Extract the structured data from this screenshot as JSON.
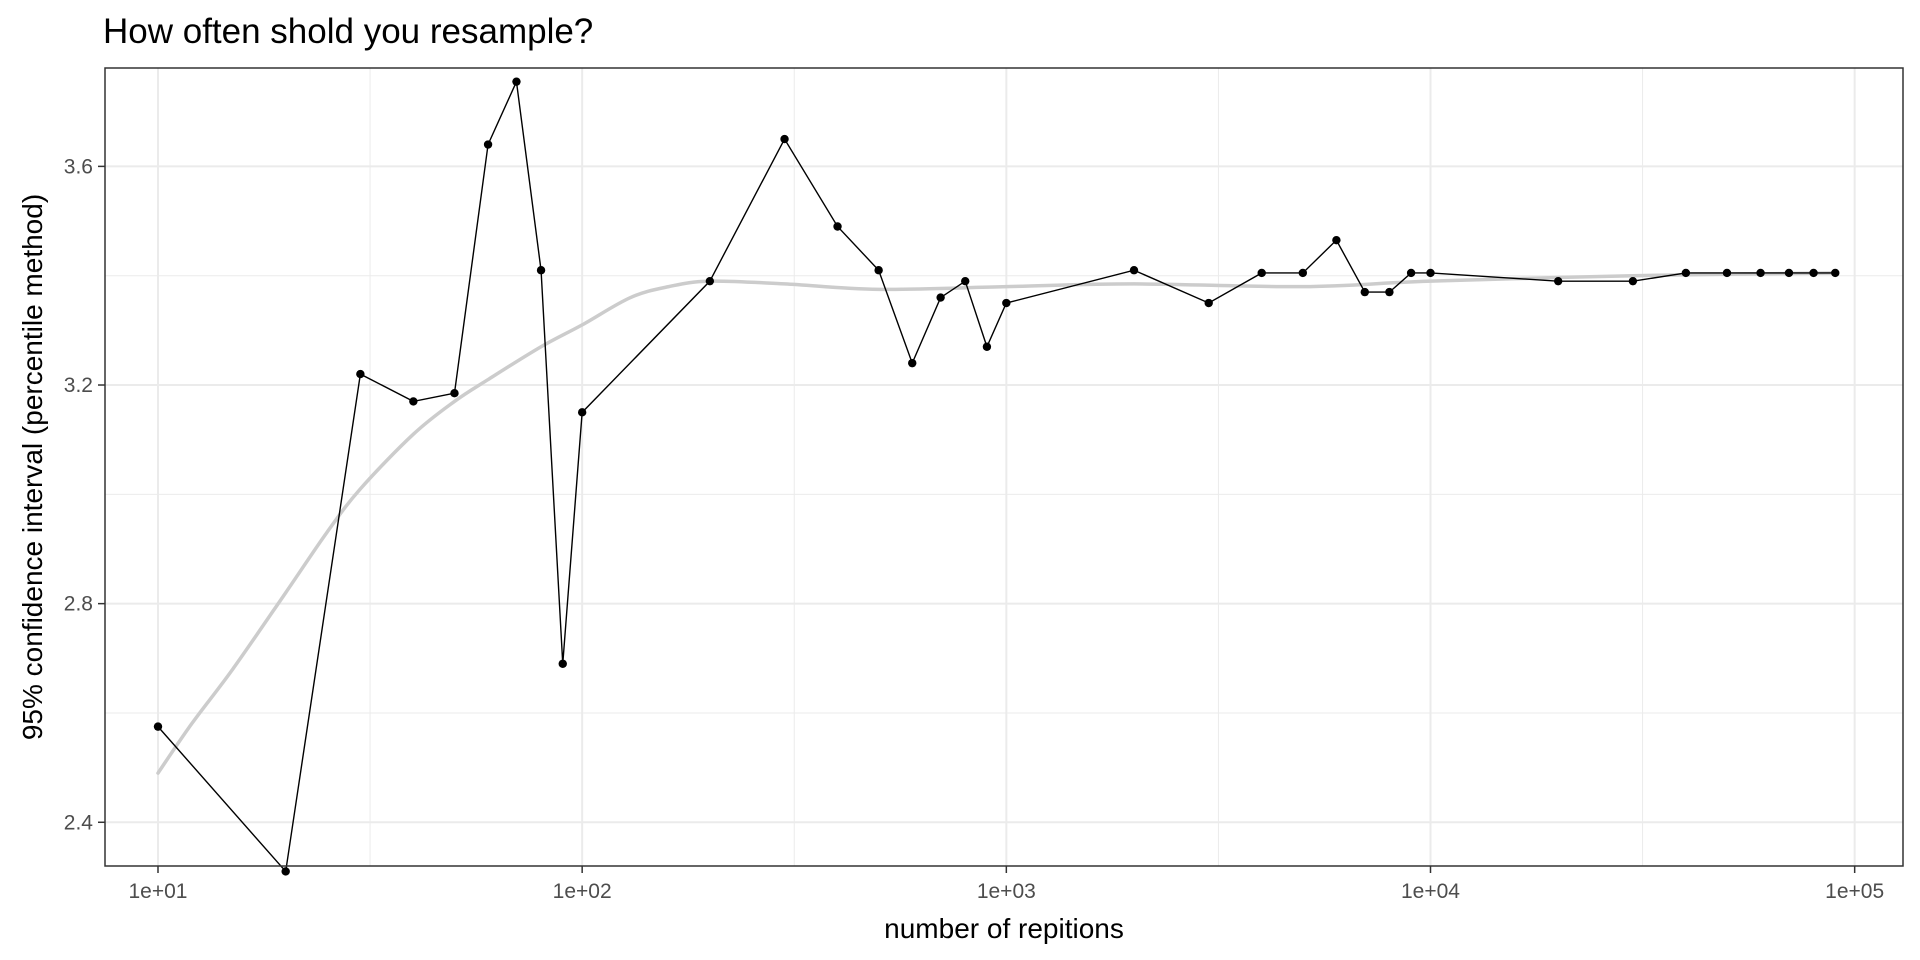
{
  "chart_data": {
    "type": "line",
    "title": "How often shold you resample?",
    "xlabel": "number of repitions",
    "ylabel": "95% confidence interval (percentile method)",
    "x_scale": "log10",
    "xlim": [
      7.5,
      130000
    ],
    "ylim": [
      2.32,
      3.78
    ],
    "x_ticks": [
      10,
      100,
      1000,
      10000,
      100000
    ],
    "x_tick_labels": [
      "1e+01",
      "1e+02",
      "1e+03",
      "1e+04",
      "1e+05"
    ],
    "y_ticks": [
      2.4,
      2.8,
      3.2,
      3.6
    ],
    "y_tick_labels": [
      "2.4",
      "2.8",
      "3.2",
      "3.6"
    ],
    "grid": true,
    "colors": {
      "line": "#000000",
      "point": "#000000",
      "smooth": "#cccccc",
      "grid": "#ebebeb",
      "border": "#333333"
    },
    "series": [
      {
        "x": [
          10,
          20,
          30,
          40,
          50,
          60,
          70,
          80,
          90,
          100,
          200,
          300,
          400,
          500,
          600,
          700,
          800,
          900,
          1000,
          2000,
          3000,
          4000,
          5000,
          6000,
          7000,
          8000,
          9000,
          10000,
          20000,
          30000,
          40000,
          50000,
          60000,
          70000,
          80000,
          90000
        ],
        "y": [
          2.575,
          2.31,
          3.22,
          3.17,
          3.185,
          3.64,
          3.755,
          3.41,
          2.69,
          3.15,
          3.39,
          3.65,
          3.49,
          3.41,
          3.24,
          3.36,
          3.39,
          3.27,
          3.35,
          3.41,
          3.35,
          3.405,
          3.405,
          3.465,
          3.37,
          3.37,
          3.405,
          3.405,
          3.39,
          3.39,
          3.405,
          3.405,
          3.405,
          3.405,
          3.405,
          3.405
        ]
      }
    ],
    "smooth": {
      "x": [
        10,
        12,
        15,
        20,
        25,
        30,
        40,
        50,
        60,
        80,
        100,
        130,
        160,
        200,
        300,
        500,
        1000,
        2000,
        5000,
        10000,
        30000,
        90000
      ],
      "y": [
        2.49,
        2.58,
        2.68,
        2.82,
        2.93,
        3.01,
        3.11,
        3.17,
        3.21,
        3.27,
        3.31,
        3.36,
        3.38,
        3.39,
        3.385,
        3.375,
        3.38,
        3.385,
        3.38,
        3.39,
        3.4,
        3.405
      ]
    }
  }
}
